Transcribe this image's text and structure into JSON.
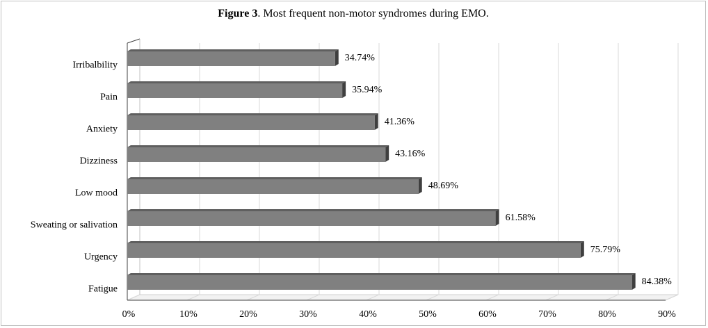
{
  "chart_data": {
    "type": "bar",
    "orientation": "horizontal",
    "title_bold": "Figure 3",
    "title_rest": ". Most frequent non-motor syndromes during EMO.",
    "categories": [
      "Irribalbility",
      "Pain",
      "Anxiety",
      "Dizziness",
      "Low mood",
      "Sweating or salivation",
      "Urgency",
      "Fatigue"
    ],
    "values": [
      34.74,
      35.94,
      41.36,
      43.16,
      48.69,
      61.58,
      75.79,
      84.38
    ],
    "data_labels": [
      "34.74%",
      "35.94%",
      "41.36%",
      "43.16%",
      "48.69%",
      "61.58%",
      "75.79%",
      "84.38%"
    ],
    "x_ticks": [
      0,
      10,
      20,
      30,
      40,
      50,
      60,
      70,
      80,
      90
    ],
    "x_tick_labels": [
      "0%",
      "10%",
      "20%",
      "30%",
      "40%",
      "50%",
      "60%",
      "70%",
      "80%",
      "90%"
    ],
    "xlim": [
      0,
      90
    ],
    "grid": "vertical",
    "bar_color": "#808080",
    "style": "3d"
  }
}
